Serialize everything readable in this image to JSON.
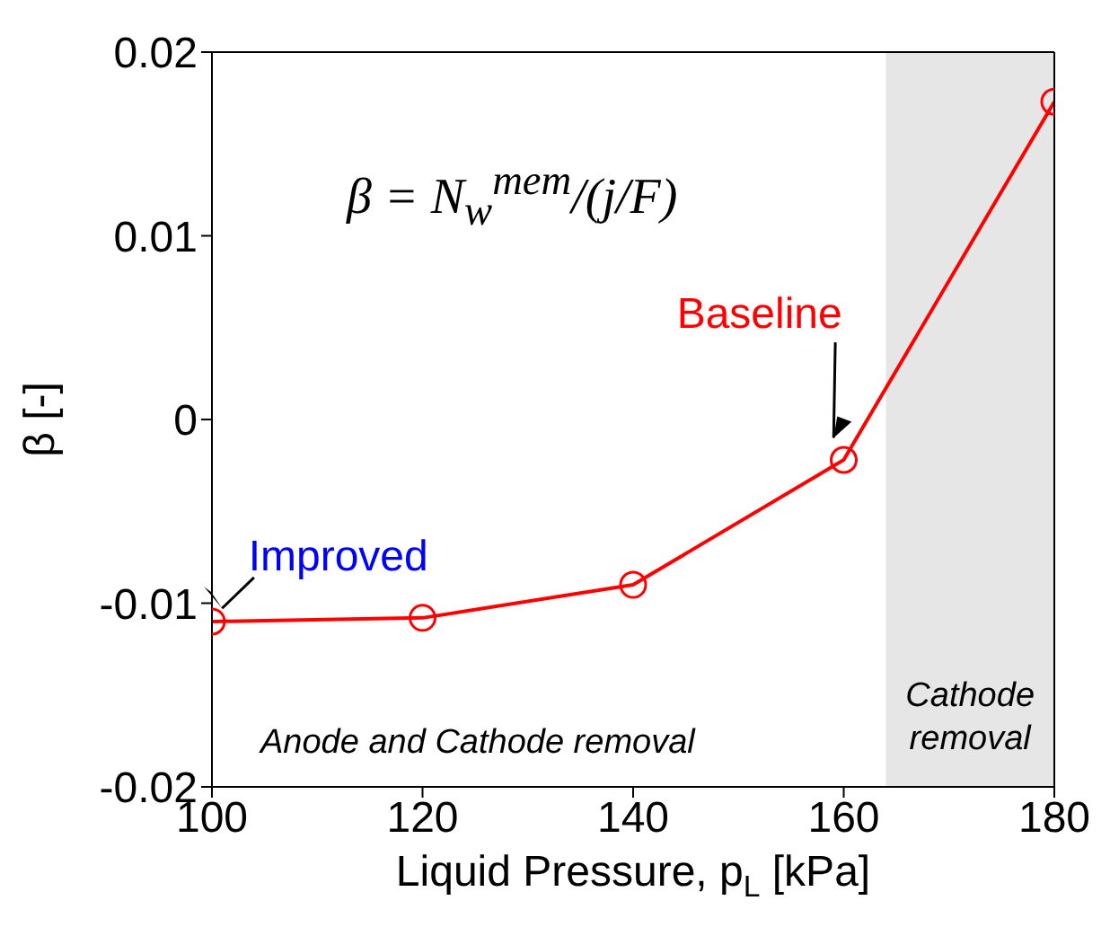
{
  "chart_data": {
    "type": "line",
    "xlabel": "Liquid Pressure, p$_{L}$ [kPa]",
    "ylabel": "β [-]",
    "x": [
      100,
      120,
      140,
      160,
      180
    ],
    "series": [
      {
        "color": "#ff0000",
        "values": [
          -0.011,
          -0.0108,
          -0.009,
          -0.0022,
          0.0173
        ]
      }
    ],
    "xlim": [
      100,
      180
    ],
    "xticks": [
      100,
      120,
      140,
      160,
      180
    ],
    "ylim": [
      -0.02,
      0.02
    ],
    "yticks": [
      -0.02,
      -0.01,
      0,
      0.01,
      0.02
    ],
    "marker": "circle",
    "line_style": "solid",
    "grid": false,
    "legend": false,
    "bands": [
      {
        "axis": "x",
        "from": 164,
        "to": 180,
        "label": "Cathode removal",
        "color": "#e6e6e6"
      }
    ],
    "annotations": [
      {
        "text": "Baseline",
        "x": 160,
        "y": -0.0022
      },
      {
        "text": "Improved",
        "x": 100,
        "y": -0.011
      },
      "Anode and Cathode removal",
      "β = N$_{w}$$^{mem}$/(j/F)"
    ]
  }
}
